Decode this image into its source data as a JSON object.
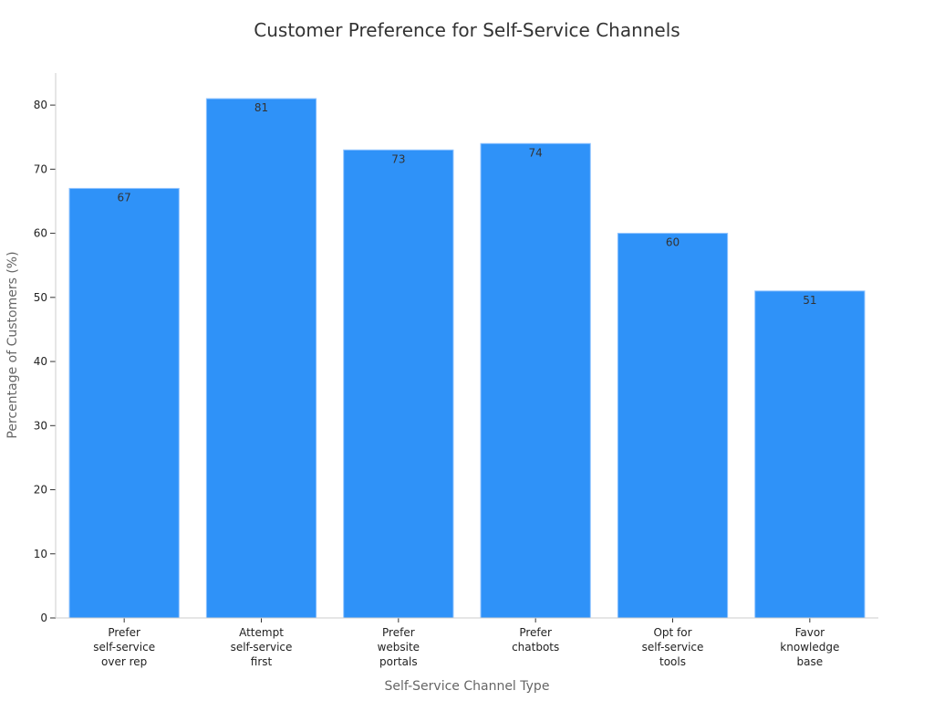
{
  "chart_data": {
    "type": "bar",
    "title": "Customer Preference for Self-Service Channels",
    "xlabel": "Self-Service Channel Type",
    "ylabel": "Percentage of Customers (%)",
    "categories": [
      "Prefer self-service over rep",
      "Attempt self-service first",
      "Prefer website portals",
      "Prefer chatbots",
      "Opt for self-service tools",
      "Favor knowledge base"
    ],
    "category_lines": [
      [
        "Prefer",
        "self-service",
        "over rep"
      ],
      [
        "Attempt",
        "self-service",
        "first"
      ],
      [
        "Prefer",
        "website",
        "portals"
      ],
      [
        "Prefer",
        "chatbots"
      ],
      [
        "Opt for",
        "self-service",
        "tools"
      ],
      [
        "Favor",
        "knowledge",
        "base"
      ]
    ],
    "values": [
      67,
      81,
      73,
      74,
      60,
      51
    ],
    "ylim": [
      0,
      85
    ],
    "yticks": [
      0,
      10,
      20,
      30,
      40,
      50,
      60,
      70,
      80
    ],
    "grid": false,
    "legend": "none",
    "bar_color": "#2f92f8",
    "bar_edge_color": "#8fc3ff"
  }
}
